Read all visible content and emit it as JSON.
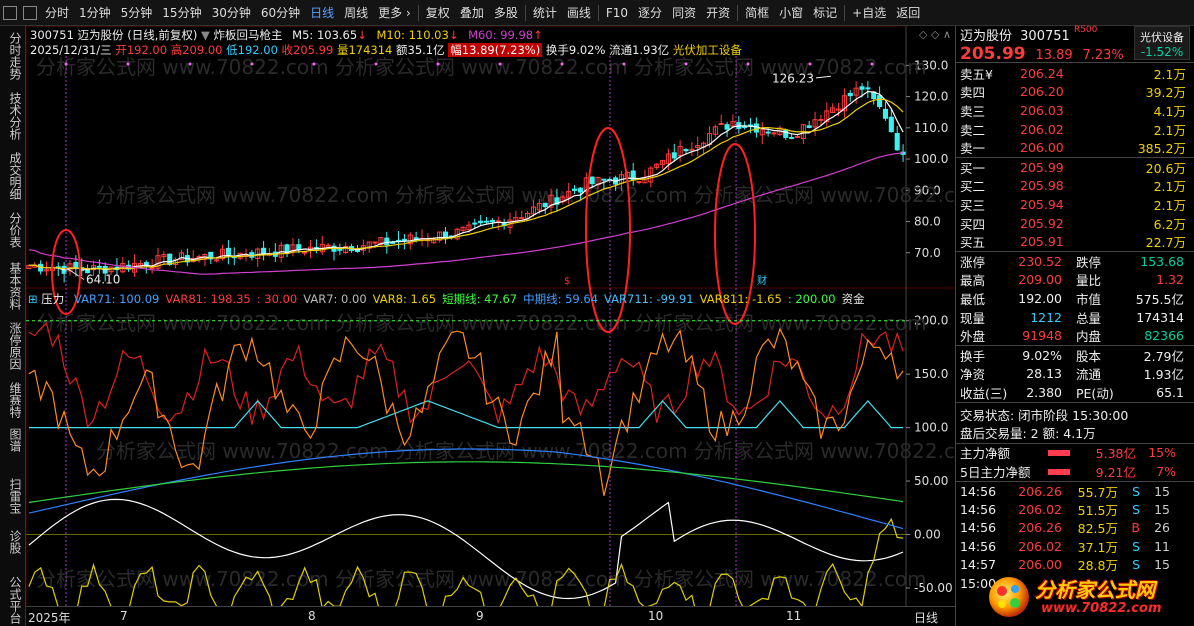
{
  "toolbar": {
    "items": [
      "分时",
      "1分钟",
      "5分钟",
      "15分钟",
      "30分钟",
      "60分钟",
      "日线",
      "周线",
      "更多 ›",
      "复权",
      "叠加",
      "多股",
      "统计",
      "画线",
      "F10",
      "逐分",
      "同资",
      "开资",
      "简框",
      "小窗",
      "标记",
      "+自选",
      "返回"
    ],
    "active_index": 6
  },
  "left_tabs": [
    "分时走势",
    "技术分析",
    "成交明细",
    "分价表",
    "基本资料",
    "涨停原因",
    "维赛特",
    "图谱",
    "扫雷宝",
    "诊股",
    "公式平台"
  ],
  "stock": {
    "name": "迈为股份",
    "code": "300751",
    "r_mark": "R500",
    "price": "205.99",
    "change": "13.89",
    "pct": "7.23%",
    "sector": "光伏设备",
    "sector_pct": "-1.52%"
  },
  "header": {
    "line1_title": "300751 迈为股份 (日线,前复权)",
    "line1_indicator": "炸板回马枪主",
    "m5": "M5: 103.65",
    "m10": "M10: 110.03",
    "m60": "M60: 99.98",
    "date": "2025/12/31/三",
    "open": "开192.00",
    "high": "高209.00",
    "low": "低192.00",
    "close": "收205.99",
    "vol": "量174314",
    "amount": "额35.1亿",
    "range": "幅13.89(7.23%)",
    "turnover": "换手9.02%",
    "float": "流通1.93亿",
    "industry": "光伏加工设备"
  },
  "subheader": {
    "label": "压力",
    "items": [
      {
        "text": "VAR71: 100.09",
        "color": "#44a0ff"
      },
      {
        "text": "VAR81: 198.35",
        "color": "#ff3c3c"
      },
      {
        "text": ": 30.00",
        "color": "#ff3c3c"
      },
      {
        "text": "VAR7: 0.00",
        "color": "#bbbbbb"
      },
      {
        "text": "VAR8: 1.65",
        "color": "#f0d000"
      },
      {
        "text": "短期线: 47.67",
        "color": "#3cff3c"
      },
      {
        "text": "中期线: 59.64",
        "color": "#44a0ff"
      },
      {
        "text": "VAR711: -99.91",
        "color": "#44c0ff"
      },
      {
        "text": "VAR811: -1.65",
        "color": "#f0d000"
      },
      {
        "text": ": 200.00",
        "color": "#3cff3c"
      },
      {
        "text": "资金",
        "color": "#eeeeee"
      }
    ]
  },
  "price_axis": [
    "130.0",
    "120.0",
    "110.0",
    "100.0",
    "90.0",
    "80.0",
    "70.0"
  ],
  "ind_axis": [
    "200.0",
    "150.0",
    "100.0",
    "50.00",
    "0.00",
    "-50.00"
  ],
  "annotations": {
    "high_label": "126.23",
    "low_label": "64.10"
  },
  "x_axis": [
    "2025年",
    "7",
    "8",
    "9",
    "10",
    "11",
    "日线"
  ],
  "order_book": {
    "sell": [
      {
        "label": "卖五¥",
        "price": "206.24",
        "vol": "2.1万"
      },
      {
        "label": "卖四",
        "price": "206.20",
        "vol": "39.2万"
      },
      {
        "label": "卖三",
        "price": "206.03",
        "vol": "4.1万"
      },
      {
        "label": "卖二",
        "price": "206.02",
        "vol": "2.1万"
      },
      {
        "label": "卖一",
        "price": "206.00",
        "vol": "385.2万"
      }
    ],
    "buy": [
      {
        "label": "买一",
        "price": "205.99",
        "vol": "20.6万"
      },
      {
        "label": "买二",
        "price": "205.98",
        "vol": "2.1万"
      },
      {
        "label": "买三",
        "price": "205.94",
        "vol": "2.1万"
      },
      {
        "label": "买四",
        "price": "205.92",
        "vol": "6.2万"
      },
      {
        "label": "买五",
        "price": "205.91",
        "vol": "22.7万"
      }
    ]
  },
  "quote_stats": [
    {
      "l1": "涨停",
      "v1": "230.52",
      "c1": "red",
      "l2": "跌停",
      "v2": "153.68",
      "c2": "green"
    },
    {
      "l1": "最高",
      "v1": "209.00",
      "c1": "red",
      "l2": "量比",
      "v2": "1.32",
      "c2": "red"
    },
    {
      "l1": "最低",
      "v1": "192.00",
      "c1": "white",
      "l2": "市值",
      "v2": "575.5亿",
      "c2": "white"
    },
    {
      "l1": "现量",
      "v1": "1212",
      "c1": "cyan",
      "l2": "总量",
      "v2": "174314",
      "c2": "white"
    },
    {
      "l1": "外盘",
      "v1": "91948",
      "c1": "red",
      "l2": "内盘",
      "v2": "82366",
      "c2": "green"
    }
  ],
  "fund_stats": [
    {
      "l1": "换手",
      "v1": "9.02%",
      "l2": "股本",
      "v2": "2.79亿"
    },
    {
      "l1": "净资",
      "v1": "28.13",
      "l2": "流通",
      "v2": "1.93亿"
    },
    {
      "l1": "收益(三)",
      "v1": "2.380",
      "l2": "PE(动)",
      "v2": "65.1"
    }
  ],
  "trade_status": "交易状态: 闭市阶段 15:30:00",
  "after_hours": "盘后交易量: 2  额: 4.1万",
  "main_flow": [
    {
      "label": "主力净额",
      "value": "5.38亿",
      "pct": "15%"
    },
    {
      "label": "5日主力净额",
      "value": "9.21亿",
      "pct": "7%"
    }
  ],
  "ticks": [
    {
      "time": "14:56",
      "price": "206.26",
      "vol": "55.7万",
      "side": "S",
      "n": "15"
    },
    {
      "time": "14:56",
      "price": "206.02",
      "vol": "51.5万",
      "side": "S",
      "n": "15"
    },
    {
      "time": "14:56",
      "price": "206.26",
      "vol": "82.5万",
      "side": "B",
      "n": "26"
    },
    {
      "time": "14:56",
      "price": "206.02",
      "vol": "37.1万",
      "side": "S",
      "n": "11"
    },
    {
      "time": "14:57",
      "price": "206.00",
      "vol": "28.8万",
      "side": "S",
      "n": "15"
    },
    {
      "time": "15:00",
      "price": "",
      "vol": "",
      "side": "",
      "n": ""
    }
  ],
  "logo": {
    "text": "分析家公式网",
    "url": "www.70822.com"
  },
  "watermark": "分析家公式网 www.70822.com",
  "chart_data": {
    "type": "line",
    "title": "",
    "price_series": {
      "x": [
        "2025-06",
        "2025-07",
        "2025-08",
        "2025-09",
        "2025-10",
        "2025-11",
        "2025-12"
      ],
      "close_approx": [
        66,
        72,
        76,
        98,
        110,
        108,
        100
      ],
      "high": 126.23,
      "low": 64.1
    },
    "price_ylim": [
      60,
      133
    ],
    "indicator_ylim": [
      -65,
      210
    ]
  }
}
